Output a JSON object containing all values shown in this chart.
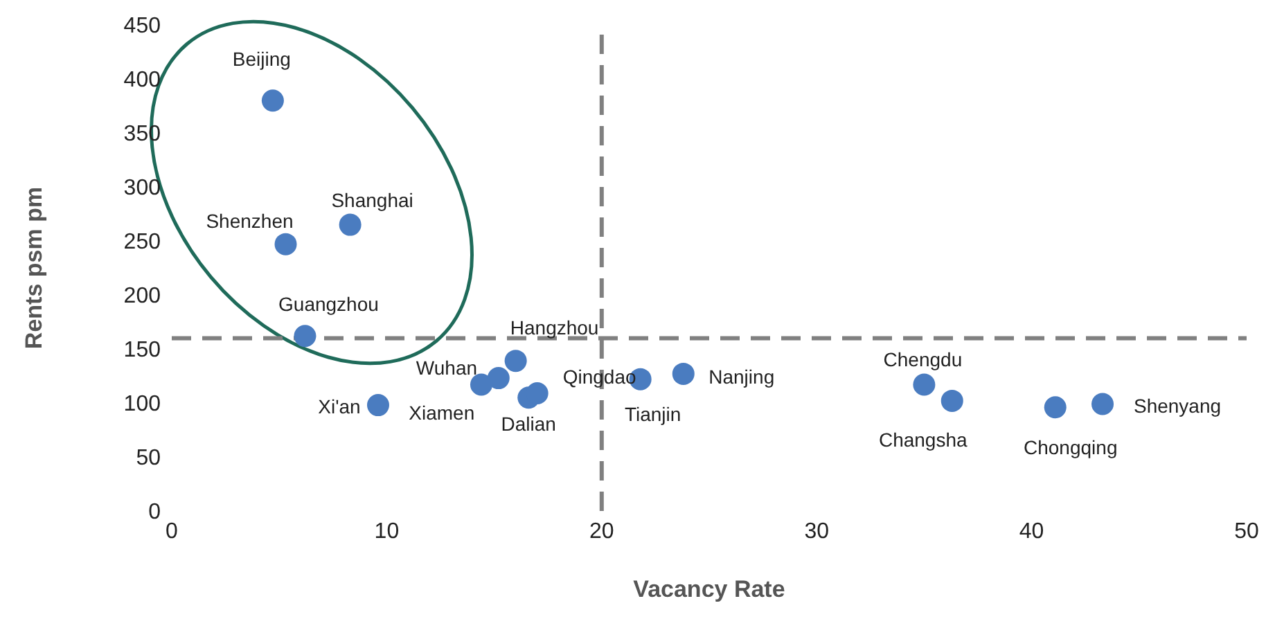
{
  "chart_data": {
    "type": "scatter",
    "xlabel": "Vacancy Rate",
    "ylabel": "Rents psm pm",
    "x": [
      4.7,
      8.3,
      5.3,
      6.2,
      9.6,
      14.4,
      15.2,
      16.0,
      16.6,
      17.0,
      21.8,
      23.8,
      35.0,
      36.3,
      41.1,
      43.3
    ],
    "series": [
      {
        "color": "#4a7cc0",
        "values": [
          380,
          265,
          247,
          162,
          98,
          117,
          123,
          139,
          105,
          109,
          122,
          127,
          117,
          102,
          96,
          99
        ]
      }
    ],
    "xlim": [
      0,
      50
    ],
    "xticks": [
      0,
      10,
      20,
      30,
      40,
      50
    ],
    "ylim": [
      0,
      450
    ],
    "yticks": [
      0,
      50,
      100,
      150,
      200,
      250,
      300,
      350,
      400,
      450
    ],
    "grid": false,
    "legend": false,
    "marker": "circle",
    "ref_lines": [
      {
        "axis": "x",
        "value": 20,
        "color": "#808080",
        "line_style": "dashed"
      },
      {
        "axis": "y",
        "value": 160,
        "color": "#808080",
        "line_style": "dashed"
      }
    ],
    "annotations": [
      {
        "text": "Beijing",
        "x": 4.7,
        "y": 380
      },
      {
        "text": "Shanghai",
        "x": 8.3,
        "y": 265
      },
      {
        "text": "Shenzhen",
        "x": 5.3,
        "y": 247
      },
      {
        "text": "Guangzhou",
        "x": 6.2,
        "y": 162
      },
      {
        "text": "Xi'an",
        "x": 9.6,
        "y": 98
      },
      {
        "text": "Wuhan",
        "x": 14.4,
        "y": 117
      },
      {
        "text": "Xiamen",
        "x": 15.2,
        "y": 123
      },
      {
        "text": "Hangzhou",
        "x": 16.0,
        "y": 139
      },
      {
        "text": "Dalian",
        "x": 16.6,
        "y": 105
      },
      {
        "text": "Qingdao",
        "x": 17.0,
        "y": 109
      },
      {
        "text": "Tianjin",
        "x": 21.8,
        "y": 122
      },
      {
        "text": "Nanjing",
        "x": 23.8,
        "y": 127
      },
      {
        "text": "Chengdu",
        "x": 35.0,
        "y": 117
      },
      {
        "text": "Changsha",
        "x": 36.3,
        "y": 102
      },
      {
        "text": "Chongqing",
        "x": 41.1,
        "y": 96
      },
      {
        "text": "Shenyang",
        "x": 43.3,
        "y": 99
      }
    ]
  }
}
